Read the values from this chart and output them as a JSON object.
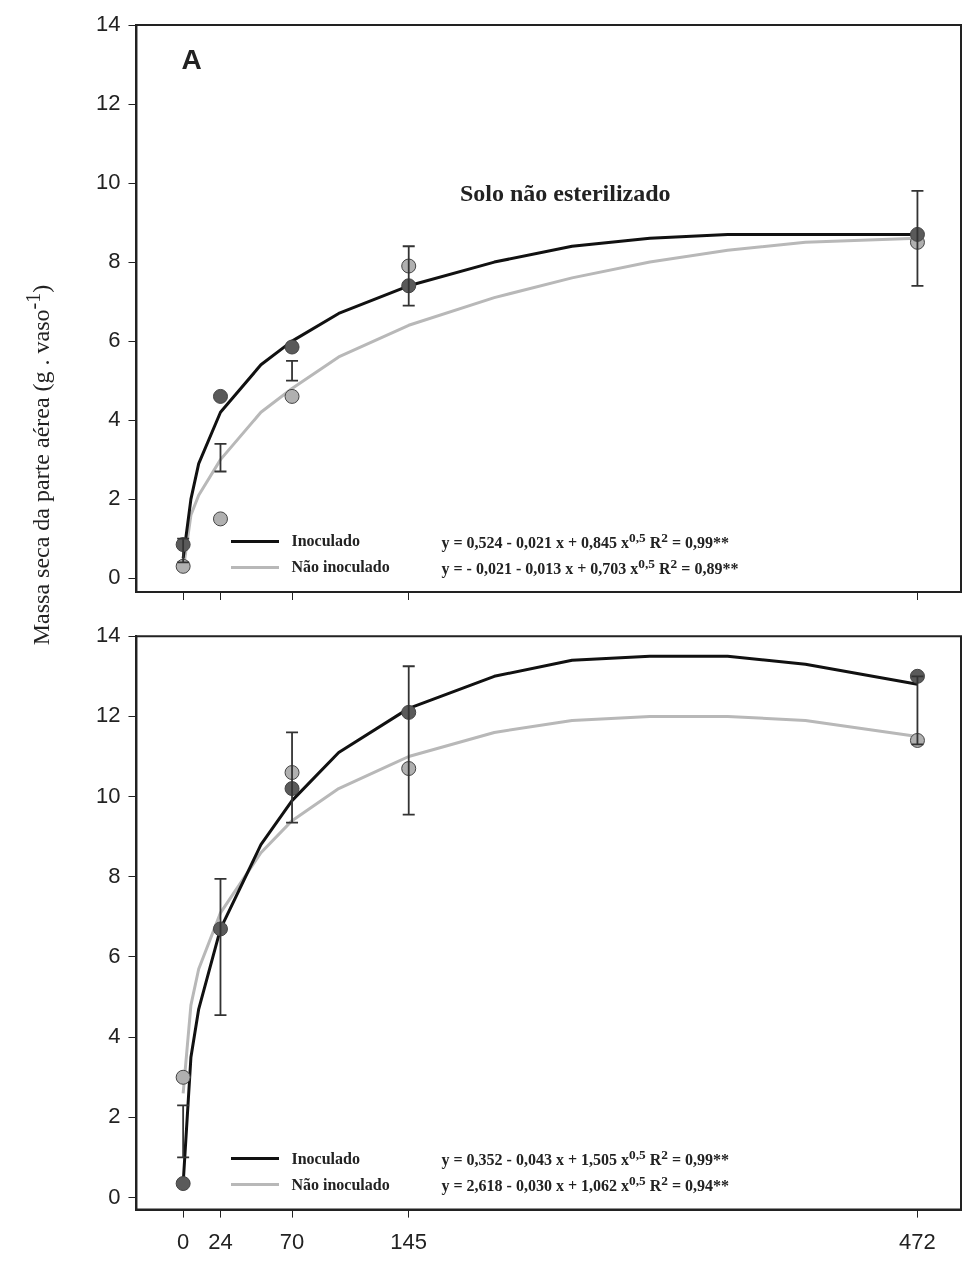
{
  "chart_data": [
    {
      "type": "scatter",
      "title": "Solo não esterilizado",
      "xlim": [
        -30,
        500
      ],
      "ylim": [
        -0.35,
        14
      ],
      "xticks": [
        0,
        24,
        70,
        145,
        472
      ],
      "yticks": [
        0,
        2,
        4,
        6,
        8,
        10,
        12,
        14
      ],
      "tick_labels": "y",
      "grid": false,
      "legend": "bottom",
      "annotations": [
        "A",
        "y =  0,524 - 0,021 x + 0,845 x$^{0,5}$  R$^{2}$ = 0,99**",
        "y = - 0,021 - 0,013 x + 0,703 x$^{0,5}$  R$^{2}$ = 0,89**"
      ],
      "series": [
        {
          "type": "scatter",
          "marker": "circle",
          "color": "#5a5a5a",
          "x": [
            0,
            24,
            70,
            145,
            472
          ],
          "values": [
            0.85,
            4.6,
            5.85,
            7.4,
            8.7
          ],
          "errors": [
            [
              0.4,
              1.0
            ],
            [
              2.7,
              3.4
            ],
            [
              5.0,
              5.5
            ],
            [
              6.9,
              8.4
            ],
            [
              7.4,
              9.8
            ]
          ]
        },
        {
          "type": "scatter",
          "marker": "circle",
          "color": "#b0b0b0",
          "x": [
            0,
            24,
            70,
            145,
            472
          ],
          "values": [
            0.3,
            1.5,
            4.6,
            7.9,
            8.5
          ]
        },
        {
          "type": "line",
          "marker": "none",
          "name": "Inoculado",
          "color": "#111111",
          "x": [
            0,
            5,
            10,
            24,
            50,
            70,
            100,
            145,
            200,
            250,
            300,
            350,
            400,
            472
          ],
          "values": [
            0.5,
            2.0,
            2.9,
            4.2,
            5.4,
            6.0,
            6.7,
            7.4,
            8.0,
            8.4,
            8.6,
            8.7,
            8.7,
            8.7
          ]
        },
        {
          "type": "line",
          "marker": "none",
          "name": "Não inoculado",
          "color": "#b8b8b8",
          "x": [
            0,
            5,
            10,
            24,
            50,
            70,
            100,
            145,
            200,
            250,
            300,
            350,
            400,
            472
          ],
          "values": [
            0.2,
            1.6,
            2.1,
            3.0,
            4.2,
            4.8,
            5.6,
            6.4,
            7.1,
            7.6,
            8.0,
            8.3,
            8.5,
            8.6
          ]
        }
      ]
    },
    {
      "type": "scatter",
      "ylabel": "Massa seca da parte aérea (g . vaso$^{-1}$)",
      "xlim": [
        -30,
        500
      ],
      "ylim": [
        -0.3,
        14
      ],
      "xticks": [
        0,
        24,
        70,
        145,
        472
      ],
      "yticks": [
        0,
        2,
        4,
        6,
        8,
        10,
        12,
        14
      ],
      "grid": false,
      "legend": "bottom",
      "annotations": [
        "y = 0,352 - 0,043 x + 1,505 x$^{0,5}$  R$^{2}$ = 0,99**",
        "y = 2,618 - 0,030 x + 1,062 x$^{0,5}$  R$^{2}$ = 0,94**"
      ],
      "series": [
        {
          "type": "scatter",
          "marker": "circle",
          "color": "#5a5a5a",
          "x": [
            0,
            24,
            70,
            145,
            472
          ],
          "values": [
            0.35,
            6.7,
            10.2,
            12.1,
            13.0
          ],
          "errors": [
            [
              1.0,
              2.3
            ],
            [
              4.55,
              7.95
            ],
            [
              9.35,
              11.6
            ],
            [
              9.55,
              13.25
            ],
            [
              11.3,
              13.0
            ]
          ]
        },
        {
          "type": "scatter",
          "marker": "circle",
          "color": "#b0b0b0",
          "x": [
            0,
            24,
            70,
            145,
            472
          ],
          "values": [
            3.0,
            null,
            10.6,
            10.7,
            11.4
          ]
        },
        {
          "type": "line",
          "marker": "none",
          "name": "Inoculado",
          "color": "#111111",
          "x": [
            0,
            5,
            10,
            24,
            50,
            70,
            100,
            145,
            200,
            250,
            300,
            350,
            400,
            472
          ],
          "values": [
            0.35,
            3.5,
            4.7,
            6.7,
            8.8,
            9.9,
            11.1,
            12.2,
            13.0,
            13.4,
            13.5,
            13.5,
            13.3,
            12.8
          ]
        },
        {
          "type": "line",
          "marker": "none",
          "name": "Não inoculado",
          "color": "#b8b8b8",
          "x": [
            0,
            5,
            10,
            24,
            50,
            70,
            100,
            145,
            200,
            250,
            300,
            350,
            400,
            472
          ],
          "values": [
            2.6,
            4.8,
            5.7,
            7.1,
            8.6,
            9.4,
            10.2,
            11.0,
            11.6,
            11.9,
            12.0,
            12.0,
            11.9,
            11.5
          ]
        }
      ]
    }
  ]
}
